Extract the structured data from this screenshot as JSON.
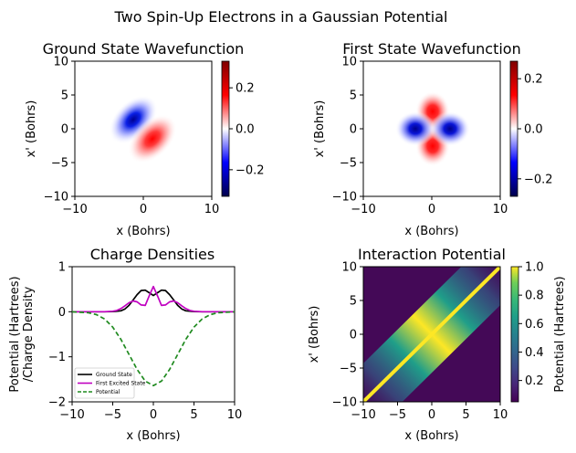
{
  "figure": {
    "suptitle": "Two Spin-Up Electrons in a Gaussian Potential"
  },
  "chart_data": [
    {
      "type": "heatmap",
      "title": "Ground State Wavefunction",
      "xlabel": "x (Bohrs)",
      "ylabel": "x' (Bohrs)",
      "xlim": [
        -10,
        10
      ],
      "ylim": [
        -10,
        10
      ],
      "xticks": [
        -10,
        0,
        10
      ],
      "yticks": [
        -10,
        -5,
        0,
        5,
        10
      ],
      "colormap": "seismic",
      "colorbar": {
        "range": [
          -0.33,
          0.33
        ],
        "ticks": [
          -0.2,
          0.0,
          0.2
        ],
        "tick_labels": [
          "−0.2",
          "0.0",
          "0.2"
        ]
      },
      "features": [
        {
          "center": [
            -1.5,
            1.5
          ],
          "sign": "negative",
          "peak": -0.33
        },
        {
          "center": [
            1.5,
            -1.5
          ],
          "sign": "positive",
          "peak": 0.33
        }
      ]
    },
    {
      "type": "heatmap",
      "title": "First State Wavefunction",
      "xlabel": "x (Bohrs)",
      "ylabel": "x' (Bohrs)",
      "xlim": [
        -10,
        10
      ],
      "ylim": [
        -10,
        10
      ],
      "xticks": [
        -10,
        0,
        10
      ],
      "yticks": [
        -10,
        -5,
        0,
        5,
        10
      ],
      "colormap": "seismic",
      "colorbar": {
        "range": [
          -0.27,
          0.27
        ],
        "ticks": [
          -0.2,
          0.0,
          0.2
        ],
        "tick_labels": [
          "−0.2",
          "0.0",
          "0.2"
        ]
      },
      "features": [
        {
          "center": [
            0,
            2.5
          ],
          "sign": "positive",
          "peak": 0.27
        },
        {
          "center": [
            0,
            -2.5
          ],
          "sign": "positive",
          "peak": 0.27
        },
        {
          "center": [
            -2.5,
            0
          ],
          "sign": "negative",
          "peak": -0.27
        },
        {
          "center": [
            2.5,
            0
          ],
          "sign": "negative",
          "peak": -0.27
        }
      ]
    },
    {
      "type": "line",
      "title": "Charge Densities",
      "xlabel": "x (Bohrs)",
      "ylabel": "Potential (Hartrees)\n/Charge Density",
      "xlim": [
        -10,
        10
      ],
      "ylim": [
        -2,
        1
      ],
      "xticks": [
        -10,
        -5,
        0,
        5,
        10
      ],
      "yticks": [
        -2,
        -1,
        0,
        1
      ],
      "legend_position": "lower-left",
      "series": [
        {
          "name": "Ground State",
          "color": "#000000",
          "style": "solid",
          "x": [
            -10,
            -6,
            -5,
            -4,
            -3.5,
            -3,
            -2.5,
            -2,
            -1.5,
            -1,
            -0.5,
            0,
            0.5,
            1,
            1.5,
            2,
            2.5,
            3,
            3.5,
            4,
            5,
            6,
            10
          ],
          "y": [
            0,
            0,
            0.003,
            0.02,
            0.06,
            0.14,
            0.26,
            0.38,
            0.47,
            0.48,
            0.42,
            0.36,
            0.42,
            0.48,
            0.47,
            0.38,
            0.26,
            0.14,
            0.06,
            0.02,
            0.003,
            0,
            0
          ]
        },
        {
          "name": "First Excited State",
          "color": "#c000c0",
          "style": "solid",
          "x": [
            -10,
            -6,
            -5,
            -4.5,
            -4,
            -3.5,
            -3,
            -2.5,
            -2,
            -1.5,
            -1,
            -0.5,
            0,
            0.5,
            1,
            1.5,
            2,
            2.5,
            3,
            3.5,
            4,
            4.5,
            5,
            6,
            10
          ],
          "y": [
            0,
            0,
            0.01,
            0.03,
            0.07,
            0.13,
            0.2,
            0.24,
            0.22,
            0.15,
            0.14,
            0.36,
            0.56,
            0.36,
            0.14,
            0.15,
            0.22,
            0.24,
            0.2,
            0.13,
            0.07,
            0.03,
            0.01,
            0,
            0
          ]
        },
        {
          "name": "Potential",
          "color": "#1f8a1f",
          "style": "dashed",
          "x": [
            -10,
            -8,
            -7,
            -6,
            -5,
            -4,
            -3,
            -2,
            -1,
            0,
            1,
            2,
            3,
            4,
            5,
            6,
            7,
            8,
            10
          ],
          "y": [
            -0.002,
            -0.022,
            -0.065,
            -0.162,
            -0.342,
            -0.612,
            -0.946,
            -1.28,
            -1.54,
            -1.64,
            -1.54,
            -1.28,
            -0.946,
            -0.612,
            -0.342,
            -0.162,
            -0.065,
            -0.022,
            -0.002
          ]
        }
      ]
    },
    {
      "type": "heatmap",
      "title": "Interaction Potential",
      "xlabel": "x (Bohrs)",
      "ylabel": "x' (Bohrs)",
      "xlim": [
        -10,
        10
      ],
      "ylim": [
        -10,
        10
      ],
      "xticks": [
        -10,
        -5,
        0,
        5,
        10
      ],
      "yticks": [
        -10,
        -5,
        0,
        5,
        10
      ],
      "colormap": "viridis",
      "colorbar": {
        "label": "Potential (Hartrees)",
        "range": [
          0.05,
          1.0
        ],
        "ticks": [
          0.2,
          0.4,
          0.6,
          0.8,
          1.0
        ],
        "tick_labels": [
          "0.2",
          "0.4",
          "0.6",
          "0.8",
          "1.0"
        ]
      },
      "features": [
        {
          "description": "peak along diagonal x = x'",
          "peak": 1.0
        }
      ]
    }
  ]
}
